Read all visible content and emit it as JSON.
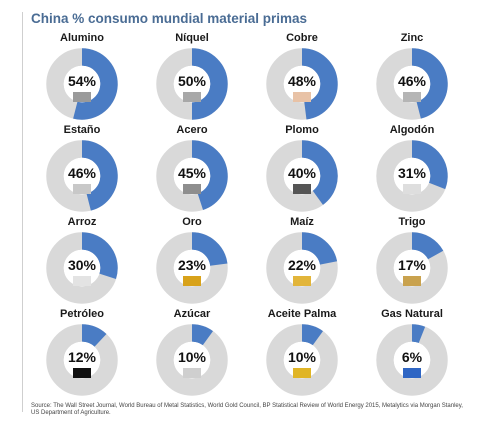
{
  "header": {
    "title": "China % consumo mundial material primas"
  },
  "footer": {
    "source": "Source: The Wall Street Journal, World Bureau of Metal Statistics, World Gold Council, BP Statistical Review of World Energy 2015, Metalytics via Morgan Stanley, US Department of Agriculture."
  },
  "colors": {
    "accent": "#4a7cc4",
    "remainder": "#d9d9d9",
    "title": "#4a6c94"
  },
  "chart_data": {
    "type": "pie",
    "title": "China % consumo mundial material primas",
    "unit": "%",
    "items": [
      {
        "label": "Alumino",
        "value": 54,
        "display": "54%",
        "swatch": "#9a9a9a"
      },
      {
        "label": "Níquel",
        "value": 50,
        "display": "50%",
        "swatch": "#a8a8a8"
      },
      {
        "label": "Cobre",
        "value": 48,
        "display": "48%",
        "swatch": "#e8c2a6"
      },
      {
        "label": "Zinc",
        "value": 46,
        "display": "46%",
        "swatch": "#b5b5b5"
      },
      {
        "label": "Estaño",
        "value": 46,
        "display": "46%",
        "swatch": "#c8c8c8"
      },
      {
        "label": "Acero",
        "value": 45,
        "display": "45%",
        "swatch": "#8e8e8e"
      },
      {
        "label": "Plomo",
        "value": 40,
        "display": "40%",
        "swatch": "#555555"
      },
      {
        "label": "Algodón",
        "value": 31,
        "display": "31%",
        "swatch": "#dedede"
      },
      {
        "label": "Arroz",
        "value": 30,
        "display": "30%",
        "swatch": "#e3e3e3"
      },
      {
        "label": "Oro",
        "value": 23,
        "display": "23%",
        "swatch": "#d8a21a"
      },
      {
        "label": "Maíz",
        "value": 22,
        "display": "22%",
        "swatch": "#e2b53a"
      },
      {
        "label": "Trigo",
        "value": 17,
        "display": "17%",
        "swatch": "#c9a24e"
      },
      {
        "label": "Petróleo",
        "value": 12,
        "display": "12%",
        "swatch": "#111111"
      },
      {
        "label": "Azúcar",
        "value": 10,
        "display": "10%",
        "swatch": "#cfcfcf"
      },
      {
        "label": "Aceite Palma",
        "value": 10,
        "display": "10%",
        "swatch": "#e0b526"
      },
      {
        "label": "Gas Natural",
        "value": 6,
        "display": "6%",
        "swatch": "#2f66c4"
      }
    ]
  }
}
